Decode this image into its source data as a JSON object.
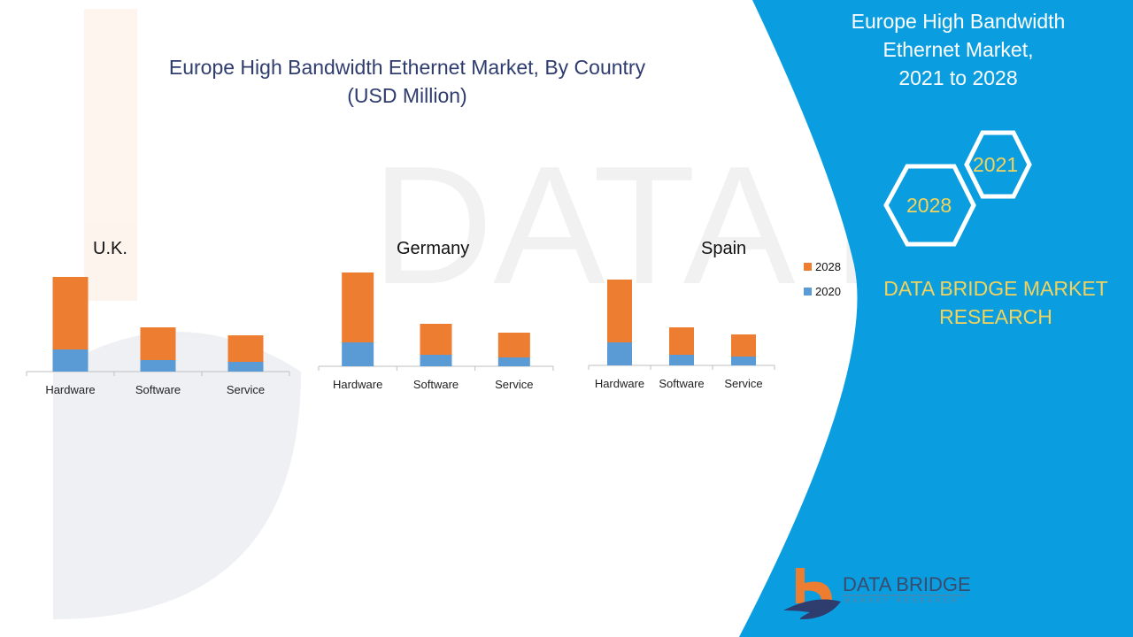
{
  "title": [
    "Europe High Bandwidth Ethernet Market, By Country",
    "(USD Million)"
  ],
  "side_panel": {
    "title": [
      "Europe High Bandwidth",
      "Ethernet Market,",
      "2021 to 2028"
    ],
    "hex_years": [
      "2021",
      "2028"
    ],
    "brand": [
      "DATA BRIDGE MARKET",
      "RESEARCH"
    ],
    "logo_text": "DATA BRIDGE",
    "logo_sub": "MARKET RESEARCH",
    "color": "#0a9ee0"
  },
  "chart_data": [
    {
      "type": "bar",
      "stacked": true,
      "title": "U.K.",
      "categories": [
        "Hardware",
        "Software",
        "Service"
      ],
      "series": [
        {
          "name": "2020",
          "color": "#5b9bd5",
          "values": [
            25,
            13,
            11
          ]
        },
        {
          "name": "2028",
          "color": "#ed7d31",
          "values": [
            82,
            37,
            30
          ]
        }
      ],
      "ylim": [
        0,
        110
      ],
      "legend": "none"
    },
    {
      "type": "bar",
      "stacked": true,
      "title": "Germany",
      "categories": [
        "Hardware",
        "Software",
        "Service"
      ],
      "series": [
        {
          "name": "2020",
          "color": "#5b9bd5",
          "values": [
            27,
            13,
            10
          ]
        },
        {
          "name": "2028",
          "color": "#ed7d31",
          "values": [
            79,
            35,
            28
          ]
        }
      ],
      "ylim": [
        0,
        110
      ],
      "legend": "none"
    },
    {
      "type": "bar",
      "stacked": true,
      "title": "Spain",
      "categories": [
        "Hardware",
        "Software",
        "Service"
      ],
      "series": [
        {
          "name": "2020",
          "color": "#5b9bd5",
          "values": [
            26,
            12,
            10
          ]
        },
        {
          "name": "2028",
          "color": "#ed7d31",
          "values": [
            71,
            31,
            25
          ]
        }
      ],
      "ylim": [
        0,
        110
      ],
      "legend": "right"
    }
  ],
  "legend": [
    {
      "label": "2028",
      "color": "#ed7d31"
    },
    {
      "label": "2020",
      "color": "#5b9bd5"
    }
  ]
}
